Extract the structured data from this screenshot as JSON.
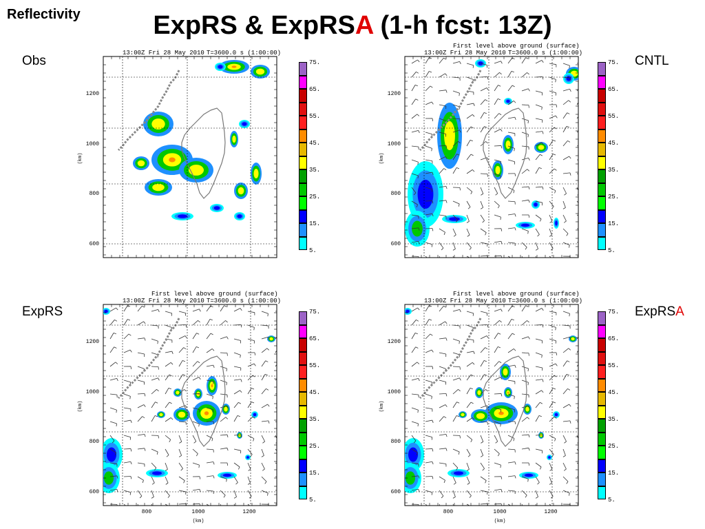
{
  "slide": {
    "corner_title": "Reflectivity",
    "title_part1": "ExpRS & ExpRS",
    "title_red": "A",
    "title_part2": " (1-h fcst: 13Z)"
  },
  "colors": {
    "accent": "#e00000",
    "scale": [
      "#9c63c6",
      "#ff00ff",
      "#c80000",
      "#e01010",
      "#ff2020",
      "#ff8c00",
      "#e6b800",
      "#ffff00",
      "#00a000",
      "#00c800",
      "#00ff00",
      "#0000ff",
      "#1e90ff",
      "#00ffff"
    ]
  },
  "legend_labels": [
    "75.",
    "65.",
    "55.",
    "45.",
    "35.",
    "25.",
    "15.",
    "5."
  ],
  "panels": [
    {
      "id": "obs",
      "label": "Obs",
      "label_red": "",
      "caption": "",
      "time_text": "13:00Z Fri 28 May 2010",
      "t_text": "T=3600.0 s (1:00:00)",
      "y_ticks": [
        "1200",
        "1000",
        "800",
        "600"
      ],
      "y_label": "(km)",
      "x_ticks": [],
      "x_label": "",
      "wind_barbs": false
    },
    {
      "id": "cntl",
      "label": "CNTL",
      "label_red": "",
      "caption": "First level above ground (surface)",
      "time_text": "13:00Z Fri 28 May 2010",
      "t_text": "T=3600.0 s (1:00:00)",
      "y_ticks": [
        "1200",
        "1000",
        "800",
        "600"
      ],
      "y_label": "(km)",
      "x_ticks": [],
      "x_label": "",
      "wind_barbs": true
    },
    {
      "id": "exprs",
      "label": "ExpRS",
      "label_red": "",
      "caption": "First level above ground (surface)",
      "time_text": "13:00Z Fri 28 May 2010",
      "t_text": "T=3600.0 s (1:00:00)",
      "y_ticks": [
        "1200",
        "1000",
        "800",
        "600"
      ],
      "y_label": "(km)",
      "x_ticks": [
        "800",
        "1000",
        "1200"
      ],
      "x_label": "(km)",
      "wind_barbs": true
    },
    {
      "id": "exprsa",
      "label": "ExpRS",
      "label_red": "A",
      "caption": "First level above ground (surface)",
      "time_text": "13:00Z Fri 28 May 2010",
      "t_text": "T=3600.0 s (1:00:00)",
      "y_ticks": [
        "1200",
        "1000",
        "800",
        "600"
      ],
      "y_label": "(km)",
      "x_ticks": [
        "800",
        "1000",
        "1200"
      ],
      "x_label": "(km)",
      "wind_barbs": true
    }
  ]
}
